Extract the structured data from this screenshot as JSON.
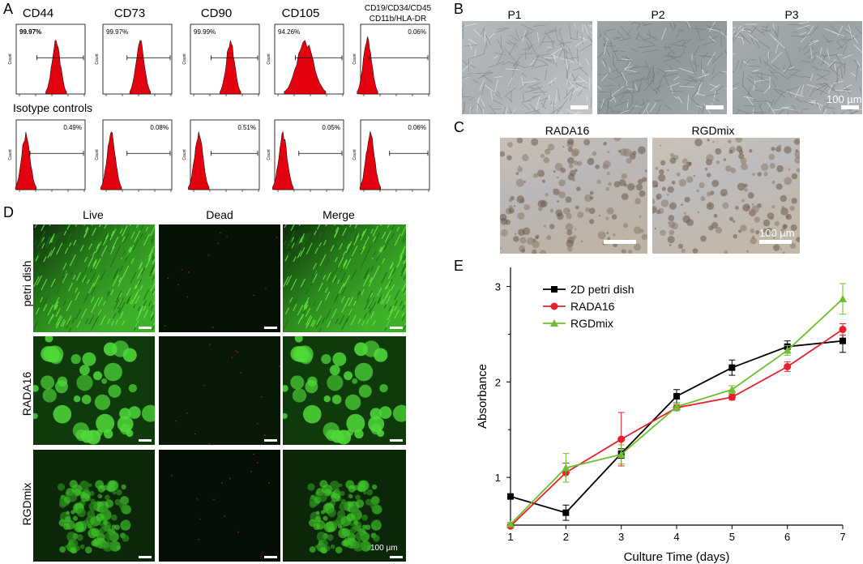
{
  "panels": {
    "A": "A",
    "B": "B",
    "C": "C",
    "D": "D",
    "E": "E"
  },
  "panel_a": {
    "markers": [
      {
        "name": "CD44",
        "pct": "99.97%",
        "iso": "0.49%"
      },
      {
        "name": "CD73",
        "pct": "99.97%",
        "iso": "0.08%"
      },
      {
        "name": "CD90",
        "pct": "99.99%",
        "iso": "0.51%"
      },
      {
        "name": "CD105",
        "pct": "94.26%",
        "iso": "0.05%"
      },
      {
        "name": "CD19/CD34/CD45",
        "name2": "CD11b/HLA-DR",
        "pct": "0.06%",
        "iso": "0.06%"
      }
    ],
    "isotype_label": "Isotype controls",
    "count_label": "Count"
  },
  "panel_b": {
    "labels": [
      "P1",
      "P2",
      "P3"
    ],
    "scale": "100 µm"
  },
  "panel_c": {
    "labels": [
      "RADA16",
      "RGDmix"
    ],
    "scale": "100 µm"
  },
  "panel_d": {
    "cols": [
      "Live",
      "Dead",
      "Merge"
    ],
    "rows": [
      "petri dish",
      "RADA16",
      "RGDmix"
    ],
    "scale": "100 µm"
  },
  "chart_data": {
    "type": "line",
    "xlabel": "Culture Time (days)",
    "ylabel": "Absorbance",
    "x": [
      1,
      2,
      3,
      4,
      5,
      6,
      7
    ],
    "xlim": [
      1,
      7
    ],
    "ylim": [
      0.5,
      3.2
    ],
    "yticks": [
      1,
      2,
      3
    ],
    "legend": "top-left",
    "series": [
      {
        "name": "2D petri dish",
        "color": "#000000",
        "marker": "square",
        "values": [
          0.8,
          0.63,
          1.25,
          1.85,
          2.15,
          2.37,
          2.43
        ],
        "err": [
          0.02,
          0.08,
          0.05,
          0.07,
          0.08,
          0.06,
          0.12
        ]
      },
      {
        "name": "RADA16",
        "color": "#e8202a",
        "marker": "circle",
        "values": [
          0.49,
          1.05,
          1.4,
          1.73,
          1.84,
          2.16,
          2.55
        ],
        "err": [
          0.02,
          0.1,
          0.28,
          0.03,
          0.03,
          0.05,
          0.06
        ]
      },
      {
        "name": "RGDmix",
        "color": "#6cbf2e",
        "marker": "triangle",
        "values": [
          0.51,
          1.1,
          1.24,
          1.74,
          1.92,
          2.33,
          2.87
        ],
        "err": [
          0.02,
          0.15,
          0.1,
          0.04,
          0.04,
          0.05,
          0.16
        ]
      }
    ]
  }
}
